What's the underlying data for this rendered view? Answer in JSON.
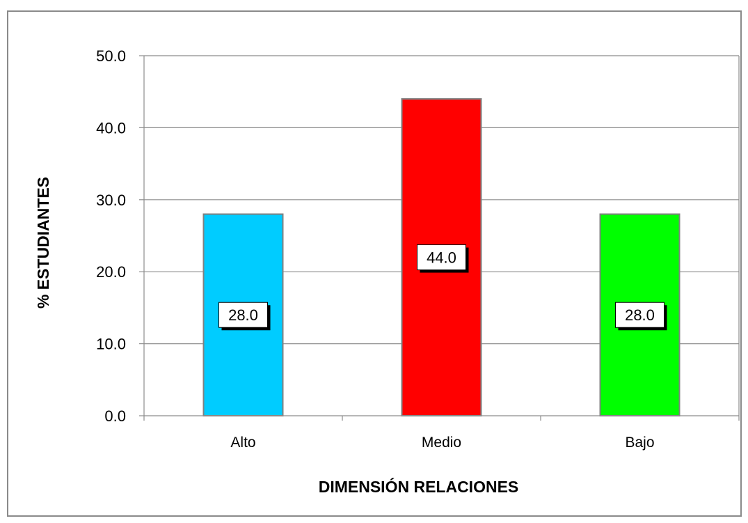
{
  "chart_data": {
    "type": "bar",
    "categories": [
      "Alto",
      "Medio",
      "Bajo"
    ],
    "values": [
      28.0,
      44.0,
      28.0
    ],
    "data_labels": [
      "28.0",
      "44.0",
      "28.0"
    ],
    "colors": [
      "#00CCFF",
      "#FF0000",
      "#00FF00"
    ],
    "xlabel": "DIMENSIÓN RELACIONES",
    "ylabel": "% ESTUDIANTES",
    "ylim": [
      0,
      50
    ],
    "yticks": [
      "0.0",
      "10.0",
      "20.0",
      "30.0",
      "40.0",
      "50.0"
    ],
    "grid": true,
    "legend": false
  }
}
